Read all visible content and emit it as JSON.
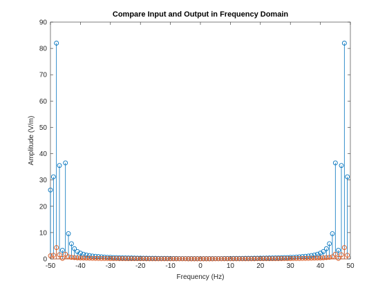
{
  "colors": {
    "background": "#ffffff",
    "axes": "#262626",
    "series_input": "#0072BD",
    "series_output": "#D95319"
  },
  "chart_data": {
    "type": "stem",
    "title": "Compare Input and Output in Frequency Domain",
    "xlabel": "Frequency (Hz)",
    "ylabel": "Amplitude (V/m)",
    "xlim": [
      -50,
      50
    ],
    "ylim": [
      0,
      90
    ],
    "xticks": [
      -50,
      -40,
      -30,
      -20,
      -10,
      0,
      10,
      20,
      30,
      40,
      50
    ],
    "yticks": [
      0,
      10,
      20,
      30,
      40,
      50,
      60,
      70,
      80,
      90
    ],
    "grid": false,
    "legend": "none",
    "x": [
      -50,
      -49,
      -48,
      -47,
      -46,
      -45,
      -44,
      -43,
      -42,
      -41,
      -40,
      -39,
      -38,
      -37,
      -36,
      -35,
      -34,
      -33,
      -32,
      -31,
      -30,
      -29,
      -28,
      -27,
      -26,
      -25,
      -24,
      -23,
      -22,
      -21,
      -20,
      -19,
      -18,
      -17,
      -16,
      -15,
      -14,
      -13,
      -12,
      -11,
      -10,
      -9,
      -8,
      -7,
      -6,
      -5,
      -4,
      -3,
      -2,
      -1,
      0,
      1,
      2,
      3,
      4,
      5,
      6,
      7,
      8,
      9,
      10,
      11,
      12,
      13,
      14,
      15,
      16,
      17,
      18,
      19,
      20,
      21,
      22,
      23,
      24,
      25,
      26,
      27,
      28,
      29,
      30,
      31,
      32,
      33,
      34,
      35,
      36,
      37,
      38,
      39,
      40,
      41,
      42,
      43,
      44,
      45,
      46,
      47,
      48,
      49
    ],
    "series": [
      {
        "values": [
          26.2,
          31.2,
          82.0,
          35.5,
          3.3,
          36.5,
          9.6,
          5.8,
          3.9,
          2.8,
          2.2,
          1.8,
          1.5,
          1.3,
          1.1,
          1.0,
          0.9,
          0.8,
          0.7,
          0.6,
          0.6,
          0.5,
          0.5,
          0.45,
          0.42,
          0.4,
          0.38,
          0.36,
          0.34,
          0.32,
          0.3,
          0.28,
          0.26,
          0.25,
          0.24,
          0.23,
          0.22,
          0.21,
          0.2,
          0.2,
          0.19,
          0.18,
          0.17,
          0.16,
          0.15,
          0.15,
          0.14,
          0.14,
          0.13,
          0.13,
          0.12,
          0.13,
          0.13,
          0.14,
          0.14,
          0.15,
          0.15,
          0.16,
          0.17,
          0.18,
          0.19,
          0.2,
          0.2,
          0.21,
          0.22,
          0.23,
          0.24,
          0.25,
          0.26,
          0.28,
          0.3,
          0.32,
          0.34,
          0.36,
          0.38,
          0.4,
          0.42,
          0.45,
          0.5,
          0.5,
          0.6,
          0.6,
          0.7,
          0.8,
          0.9,
          1.0,
          1.1,
          1.3,
          1.5,
          1.8,
          2.2,
          2.8,
          3.9,
          5.8,
          9.6,
          36.5,
          3.3,
          35.5,
          82.0,
          31.2
        ]
      },
      {
        "values": [
          1.2,
          1.4,
          4.3,
          1.6,
          0.2,
          1.8,
          0.8,
          0.6,
          0.5,
          0.4,
          0.35,
          0.3,
          0.28,
          0.25,
          0.22,
          0.2,
          0.18,
          0.16,
          0.15,
          0.14,
          0.13,
          0.12,
          0.11,
          0.1,
          0.1,
          0.09,
          0.09,
          0.08,
          0.08,
          0.07,
          0.07,
          0.07,
          0.06,
          0.06,
          0.06,
          0.05,
          0.05,
          0.05,
          0.05,
          0.05,
          0.04,
          0.04,
          0.04,
          0.04,
          0.04,
          0.04,
          0.03,
          0.03,
          0.03,
          0.03,
          0.03,
          0.03,
          0.03,
          0.03,
          0.03,
          0.04,
          0.04,
          0.04,
          0.04,
          0.04,
          0.04,
          0.05,
          0.05,
          0.05,
          0.05,
          0.05,
          0.06,
          0.06,
          0.06,
          0.07,
          0.07,
          0.07,
          0.08,
          0.08,
          0.09,
          0.09,
          0.1,
          0.1,
          0.11,
          0.12,
          0.13,
          0.14,
          0.15,
          0.16,
          0.18,
          0.2,
          0.22,
          0.25,
          0.28,
          0.3,
          0.35,
          0.4,
          0.5,
          0.6,
          0.8,
          1.8,
          0.2,
          1.6,
          4.3,
          1.4
        ]
      }
    ]
  }
}
